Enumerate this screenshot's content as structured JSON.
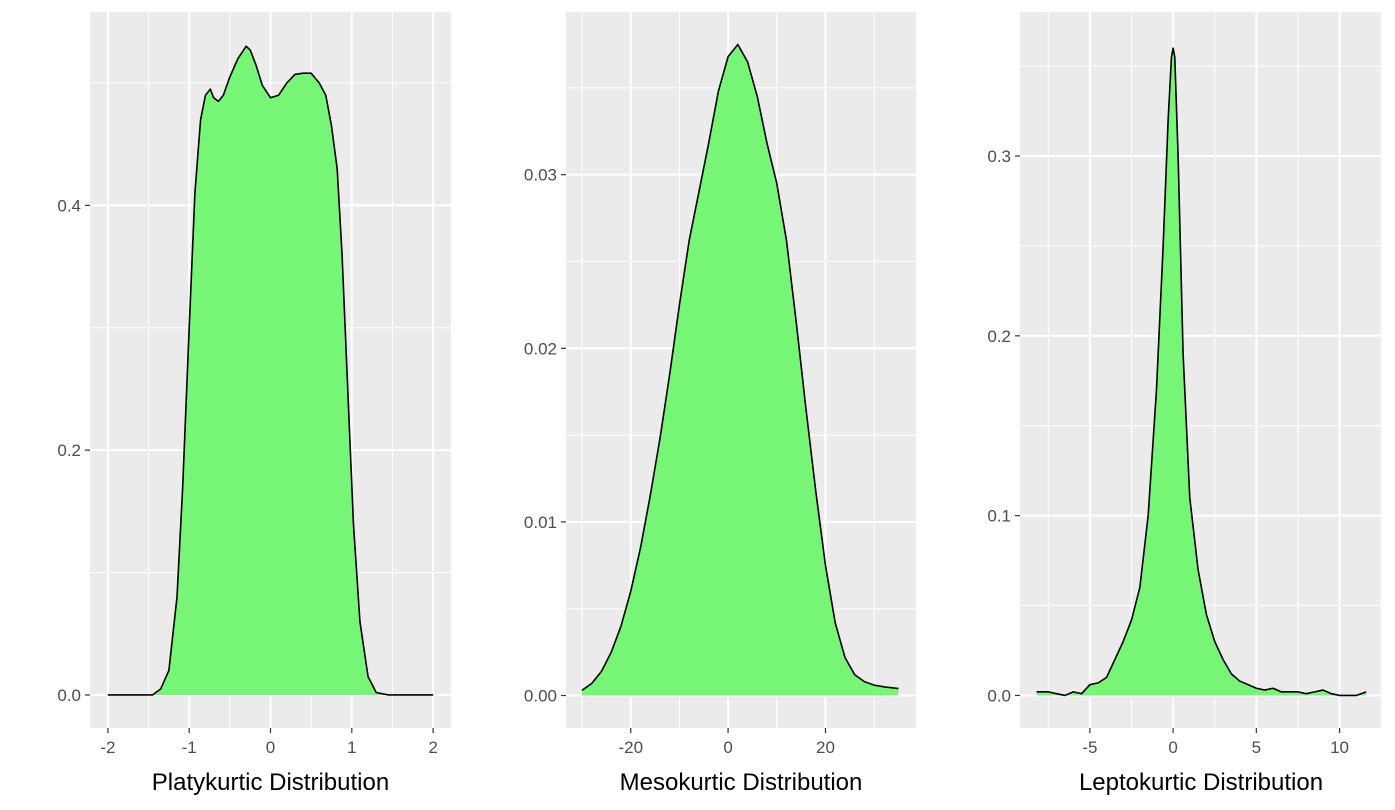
{
  "chart_data": [
    {
      "type": "area",
      "title": "",
      "xlabel": "Platykurtic Distribution",
      "ylabel": "",
      "xlim": [
        -2.22,
        2.22
      ],
      "ylim": [
        -0.027,
        0.558
      ],
      "xticks": [
        -2,
        -1,
        0,
        1,
        2
      ],
      "xtick_labels": [
        "-2",
        "-1",
        "0",
        "1",
        "2"
      ],
      "yticks": [
        0.0,
        0.2,
        0.4
      ],
      "ytick_labels": [
        "0.0",
        "0.2",
        "0.4"
      ],
      "grid": true,
      "series": [
        {
          "x": [
            -2.0,
            -1.6,
            -1.45,
            -1.35,
            -1.25,
            -1.15,
            -1.08,
            -1.0,
            -0.93,
            -0.86,
            -0.8,
            -0.74,
            -0.7,
            -0.64,
            -0.58,
            -0.5,
            -0.4,
            -0.3,
            -0.25,
            -0.18,
            -0.1,
            0.0,
            0.1,
            0.2,
            0.3,
            0.4,
            0.5,
            0.6,
            0.68,
            0.75,
            0.82,
            0.88,
            0.95,
            1.02,
            1.1,
            1.2,
            1.3,
            1.45,
            1.6,
            2.0
          ],
          "y": [
            0.0,
            0.0,
            0.0,
            0.005,
            0.02,
            0.08,
            0.17,
            0.3,
            0.41,
            0.47,
            0.49,
            0.495,
            0.488,
            0.485,
            0.49,
            0.505,
            0.52,
            0.53,
            0.527,
            0.515,
            0.498,
            0.488,
            0.49,
            0.5,
            0.507,
            0.508,
            0.508,
            0.5,
            0.49,
            0.465,
            0.43,
            0.36,
            0.25,
            0.14,
            0.06,
            0.015,
            0.002,
            0.0,
            0.0,
            0.0
          ]
        }
      ]
    },
    {
      "type": "area",
      "title": "",
      "xlabel": "Mesokurtic Distribution",
      "ylabel": "",
      "xlim": [
        -33.3,
        38.6
      ],
      "ylim": [
        -0.00187,
        0.03937
      ],
      "xticks": [
        -20,
        0,
        20
      ],
      "xtick_labels": [
        "-20",
        "0",
        "20"
      ],
      "yticks": [
        0.0,
        0.01,
        0.02,
        0.03
      ],
      "ytick_labels": [
        "0.00",
        "0.01",
        "0.02",
        "0.03"
      ],
      "grid": true,
      "series": [
        {
          "x": [
            -30,
            -28,
            -26,
            -24,
            -22,
            -20,
            -18,
            -16,
            -14,
            -12,
            -10,
            -8,
            -6,
            -4,
            -2,
            0,
            2,
            4,
            6,
            8,
            10,
            12,
            14,
            16,
            18,
            20,
            22,
            24,
            26,
            28,
            30,
            32,
            35
          ],
          "y": [
            0.0003,
            0.0007,
            0.0014,
            0.0025,
            0.004,
            0.006,
            0.0085,
            0.0115,
            0.0148,
            0.0185,
            0.0225,
            0.0262,
            0.029,
            0.0318,
            0.0348,
            0.0368,
            0.0375,
            0.0365,
            0.0345,
            0.0318,
            0.0295,
            0.0262,
            0.0215,
            0.0165,
            0.0118,
            0.0075,
            0.0042,
            0.0022,
            0.0012,
            0.0008,
            0.0006,
            0.0005,
            0.0004
          ]
        }
      ]
    },
    {
      "type": "area",
      "title": "",
      "xlabel": "Leptokurtic Distribution",
      "ylabel": "",
      "xlim": [
        -9.2,
        12.55
      ],
      "ylim": [
        -0.0181,
        0.3801
      ],
      "xticks": [
        -5,
        0,
        5,
        10
      ],
      "xtick_labels": [
        "-5",
        "0",
        "5",
        "10"
      ],
      "yticks": [
        0.0,
        0.1,
        0.2,
        0.3
      ],
      "ytick_labels": [
        "0.0",
        "0.1",
        "0.2",
        "0.3"
      ],
      "grid": true,
      "series": [
        {
          "x": [
            -8.2,
            -7.5,
            -7.0,
            -6.5,
            -6.0,
            -5.5,
            -5.0,
            -4.5,
            -4.0,
            -3.5,
            -3.0,
            -2.5,
            -2.0,
            -1.5,
            -1.0,
            -0.6,
            -0.3,
            -0.1,
            0.0,
            0.1,
            0.3,
            0.6,
            1.0,
            1.5,
            2.0,
            2.5,
            3.0,
            3.5,
            4.0,
            4.5,
            5.0,
            5.5,
            6.0,
            6.5,
            7.0,
            7.5,
            8.0,
            8.5,
            9.0,
            9.5,
            10.0,
            10.5,
            11.0,
            11.6
          ],
          "y": [
            0.002,
            0.002,
            0.001,
            0.0,
            0.002,
            0.001,
            0.006,
            0.007,
            0.01,
            0.02,
            0.03,
            0.042,
            0.06,
            0.1,
            0.17,
            0.25,
            0.32,
            0.355,
            0.36,
            0.355,
            0.3,
            0.19,
            0.11,
            0.07,
            0.045,
            0.03,
            0.02,
            0.012,
            0.008,
            0.006,
            0.004,
            0.003,
            0.004,
            0.002,
            0.002,
            0.002,
            0.001,
            0.002,
            0.003,
            0.001,
            0.0,
            0.0,
            0.0,
            0.002
          ]
        }
      ]
    }
  ],
  "colors": {
    "panel_background": "#ebebeb",
    "grid_line": "#ffffff",
    "area_fill": "#76f576",
    "outline": "#000000",
    "tick_text": "#4d4d4d",
    "axis_text": "#000000"
  }
}
